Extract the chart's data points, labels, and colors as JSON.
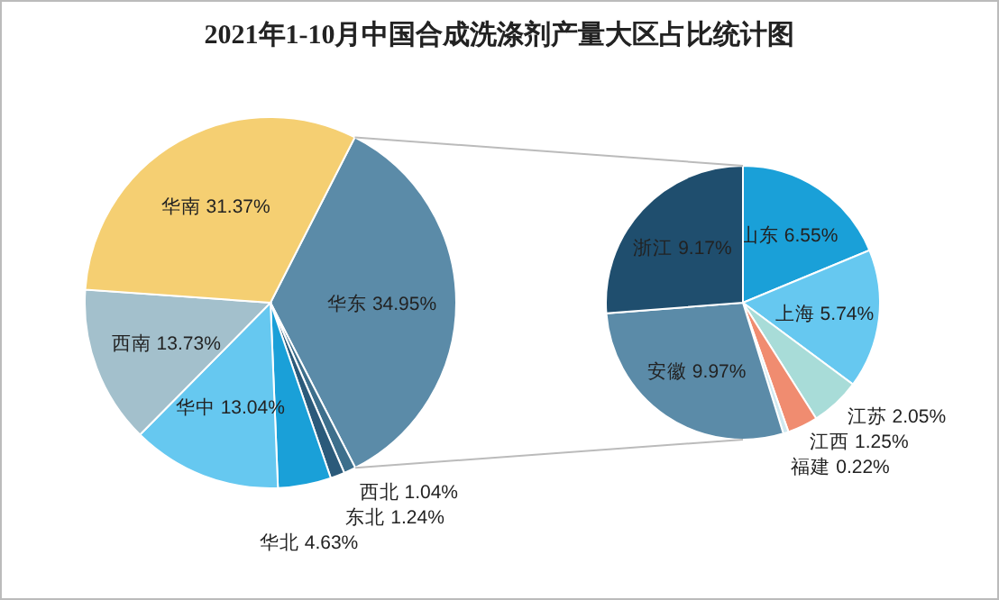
{
  "chart_data": [
    {
      "type": "pie",
      "title": "2021年1-10月中国合成洗涤剂产量大区占比统计图",
      "categories": [
        "华东",
        "西北",
        "东北",
        "华北",
        "华中",
        "西南",
        "华南"
      ],
      "values": [
        34.95,
        1.04,
        1.24,
        4.63,
        13.04,
        13.73,
        31.37
      ],
      "value_labels": [
        "34.95%",
        "1.04%",
        "1.24%",
        "4.63%",
        "13.04%",
        "13.73%",
        "31.37%"
      ],
      "colors": [
        "#5b8ba8",
        "#3d6f8c",
        "#2b5a7a",
        "#1aa0d8",
        "#66c8f0",
        "#a3c0cc",
        "#f5cf72"
      ]
    },
    {
      "type": "pie",
      "categories": [
        "山东",
        "上海",
        "江苏",
        "江西",
        "福建",
        "安徽",
        "浙江"
      ],
      "values": [
        6.55,
        5.74,
        2.05,
        1.25,
        0.22,
        9.97,
        9.17
      ],
      "value_labels": [
        "6.55%",
        "5.74%",
        "2.05%",
        "1.25%",
        "0.22%",
        "9.97%",
        "9.17%"
      ],
      "colors": [
        "#1aa0d8",
        "#66c8f0",
        "#a8dcd8",
        "#f08c70",
        "#d0e8f0",
        "#5b8ba8",
        "#1f4e6e"
      ]
    }
  ]
}
